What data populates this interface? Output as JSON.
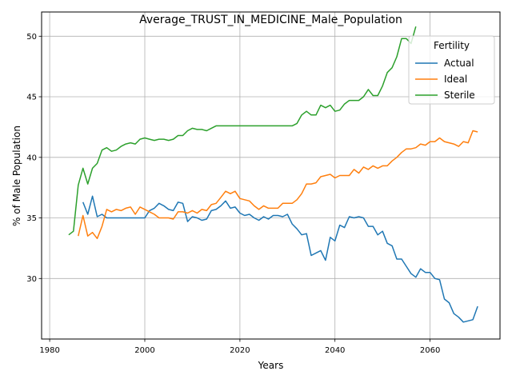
{
  "chart_data": {
    "type": "line",
    "title": "Average_TRUST_IN_MEDICINE_Male_Population",
    "xlabel": "Years",
    "ylabel": "% of Male Population",
    "xlim": [
      1978.3,
      2074.7
    ],
    "ylim": [
      25.0,
      52.0
    ],
    "xticks": [
      1980,
      2000,
      2020,
      2040,
      2060
    ],
    "yticks": [
      30,
      35,
      40,
      45,
      50
    ],
    "grid": true,
    "legend": {
      "title": "Fertility",
      "placement": "top-right"
    },
    "series": [
      {
        "name": "Actual",
        "color": "#1f77b4",
        "x": [
          1987,
          1988,
          1989,
          1990,
          1991,
          1992,
          1993,
          1994,
          1995,
          1996,
          1997,
          1998,
          1999,
          2000,
          2001,
          2002,
          2003,
          2004,
          2005,
          2006,
          2007,
          2008,
          2009,
          2010,
          2011,
          2012,
          2013,
          2014,
          2015,
          2016,
          2017,
          2018,
          2019,
          2020,
          2021,
          2022,
          2023,
          2024,
          2025,
          2026,
          2027,
          2028,
          2029,
          2030,
          2031,
          2032,
          2033,
          2034,
          2035,
          2036,
          2037,
          2038,
          2039,
          2040,
          2041,
          2042,
          2043,
          2044,
          2045,
          2046,
          2047,
          2048,
          2049,
          2050,
          2051,
          2052,
          2053,
          2054,
          2055,
          2056,
          2057,
          2058,
          2059,
          2060,
          2061,
          2062,
          2063,
          2064,
          2065,
          2066,
          2067,
          2068,
          2069,
          2070
        ],
        "values": [
          36.3,
          35.3,
          36.8,
          35.1,
          35.3,
          35.0,
          35.0,
          35.0,
          35.0,
          35.0,
          35.0,
          35.0,
          35.0,
          35.0,
          35.6,
          35.8,
          36.2,
          36.0,
          35.7,
          35.6,
          36.3,
          36.2,
          34.7,
          35.1,
          35.0,
          34.8,
          34.9,
          35.6,
          35.7,
          36.0,
          36.4,
          35.8,
          35.9,
          35.4,
          35.2,
          35.3,
          35.0,
          34.8,
          35.1,
          34.9,
          35.2,
          35.2,
          35.1,
          35.3,
          34.5,
          34.1,
          33.6,
          33.7,
          31.9,
          32.1,
          32.3,
          31.5,
          33.4,
          33.1,
          34.4,
          34.2,
          35.1,
          35.0,
          35.1,
          35.0,
          34.3,
          34.3,
          33.6,
          33.9,
          32.9,
          32.7,
          31.6,
          31.6,
          31.0,
          30.4,
          30.1,
          30.8,
          30.5,
          30.5,
          30.0,
          29.9,
          28.3,
          28.0,
          27.1,
          26.8,
          26.4,
          26.5,
          26.6,
          27.7
        ]
      },
      {
        "name": "Ideal",
        "color": "#ff7f0e",
        "x": [
          1986,
          1987,
          1988,
          1989,
          1990,
          1991,
          1992,
          1993,
          1994,
          1995,
          1996,
          1997,
          1998,
          1999,
          2000,
          2001,
          2002,
          2003,
          2004,
          2005,
          2006,
          2007,
          2008,
          2009,
          2010,
          2011,
          2012,
          2013,
          2014,
          2015,
          2016,
          2017,
          2018,
          2019,
          2020,
          2021,
          2022,
          2023,
          2024,
          2025,
          2026,
          2027,
          2028,
          2029,
          2030,
          2031,
          2032,
          2033,
          2034,
          2035,
          2036,
          2037,
          2038,
          2039,
          2040,
          2041,
          2042,
          2043,
          2044,
          2045,
          2046,
          2047,
          2048,
          2049,
          2050,
          2051,
          2052,
          2053,
          2054,
          2055,
          2056,
          2057,
          2058,
          2059,
          2060,
          2061,
          2062,
          2063,
          2064,
          2065,
          2066,
          2067,
          2068,
          2069,
          2070
        ],
        "values": [
          33.5,
          35.2,
          33.5,
          33.8,
          33.3,
          34.3,
          35.7,
          35.5,
          35.7,
          35.6,
          35.8,
          35.9,
          35.3,
          35.9,
          35.7,
          35.5,
          35.3,
          35.0,
          35.0,
          35.0,
          34.9,
          35.5,
          35.5,
          35.4,
          35.6,
          35.4,
          35.7,
          35.6,
          36.1,
          36.2,
          36.7,
          37.2,
          37.0,
          37.2,
          36.6,
          36.5,
          36.4,
          36.0,
          35.7,
          36.0,
          35.8,
          35.8,
          35.8,
          36.2,
          36.2,
          36.2,
          36.5,
          37.0,
          37.8,
          37.8,
          37.9,
          38.4,
          38.5,
          38.6,
          38.3,
          38.5,
          38.5,
          38.5,
          39.0,
          38.7,
          39.2,
          39.0,
          39.3,
          39.1,
          39.3,
          39.3,
          39.7,
          40.0,
          40.4,
          40.7,
          40.7,
          40.8,
          41.1,
          41.0,
          41.3,
          41.3,
          41.6,
          41.3,
          41.2,
          41.1,
          40.9,
          41.3,
          41.2,
          42.2,
          42.1
        ]
      },
      {
        "name": "Sterile",
        "color": "#2ca02c",
        "x": [
          1984,
          1985,
          1986,
          1987,
          1988,
          1989,
          1990,
          1991,
          1992,
          1993,
          1994,
          1995,
          1996,
          1997,
          1998,
          1999,
          2000,
          2001,
          2002,
          2003,
          2004,
          2005,
          2006,
          2007,
          2008,
          2009,
          2010,
          2011,
          2012,
          2013,
          2014,
          2015,
          2016,
          2017,
          2018,
          2019,
          2020,
          2021,
          2022,
          2023,
          2024,
          2025,
          2026,
          2027,
          2028,
          2029,
          2030,
          2031,
          2032,
          2033,
          2034,
          2035,
          2036,
          2037,
          2038,
          2039,
          2040,
          2041,
          2042,
          2043,
          2044,
          2045,
          2046,
          2047,
          2048,
          2049,
          2050,
          2051,
          2052,
          2053,
          2054,
          2055,
          2056,
          2057
        ],
        "values": [
          33.6,
          33.9,
          37.7,
          39.1,
          37.8,
          39.1,
          39.5,
          40.6,
          40.8,
          40.5,
          40.6,
          40.9,
          41.1,
          41.2,
          41.1,
          41.5,
          41.6,
          41.5,
          41.4,
          41.5,
          41.5,
          41.4,
          41.5,
          41.8,
          41.8,
          42.2,
          42.4,
          42.3,
          42.3,
          42.2,
          42.4,
          42.6,
          42.6,
          42.6,
          42.6,
          42.6,
          42.6,
          42.6,
          42.6,
          42.6,
          42.6,
          42.6,
          42.6,
          42.6,
          42.6,
          42.6,
          42.6,
          42.6,
          42.8,
          43.5,
          43.8,
          43.5,
          43.5,
          44.3,
          44.1,
          44.3,
          43.8,
          43.9,
          44.4,
          44.7,
          44.7,
          44.7,
          45.0,
          45.6,
          45.1,
          45.1,
          45.9,
          47.0,
          47.4,
          48.3,
          49.8,
          49.8,
          49.4,
          50.8
        ]
      }
    ]
  }
}
